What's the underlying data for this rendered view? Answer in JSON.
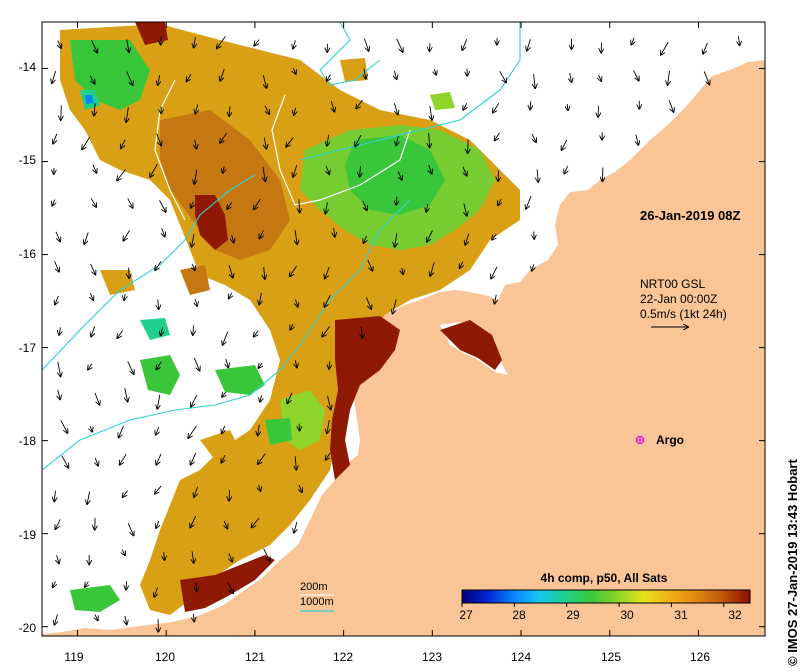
{
  "map": {
    "lon_ticks": [
      "119",
      "120",
      "121",
      "122",
      "123",
      "124",
      "125",
      "126"
    ],
    "lat_ticks": [
      "-14",
      "-15",
      "-16",
      "-17",
      "-18",
      "-19",
      "-20"
    ],
    "lon_range": [
      118.6,
      126.75
    ],
    "lat_range": [
      -20.1,
      -13.5
    ],
    "timestamp_label": "26-Jan-2019 08Z",
    "current_legend": {
      "line1": "NRT00 GSL",
      "line2": "22-Jan 00:00Z",
      "line3": "0.5m/s (1kt 24h)"
    },
    "argo_label": "Argo",
    "isobath_legend": {
      "shallow": "200m",
      "deep": "1000m"
    },
    "colorbar": {
      "title": "4h comp, p50, All Sats",
      "ticks": [
        "27",
        "28",
        "29",
        "30",
        "31",
        "32"
      ],
      "range": [
        27,
        32.5
      ]
    },
    "credit": "© IMOS 27-Jan-2019 13:43 Hobart",
    "colors": {
      "land": "#f9c596",
      "isobath_200m": "#2fd2d2",
      "isobath_1000m": "#ffffff",
      "argo": "#e020e0",
      "frame": "#000000"
    }
  }
}
